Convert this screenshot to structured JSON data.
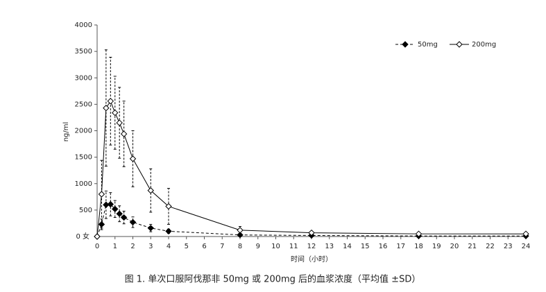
{
  "chart_data": {
    "type": "line",
    "title": "图 1. 单次口服阿伐那非 50mg 或 200mg 后的血浆浓度（平均值 ±SD）",
    "x_label": "时间（小时）",
    "y_label": "ng/ml",
    "x": [
      0,
      0.25,
      0.5,
      0.75,
      1,
      1.25,
      1.5,
      2,
      3,
      4,
      8,
      12,
      18,
      24
    ],
    "series": [
      {
        "name": "50mg",
        "color": "#000000",
        "line_style": "dashed",
        "marker": "filled-diamond",
        "values": [
          0,
          230,
          600,
          610,
          520,
          430,
          360,
          270,
          160,
          100,
          30,
          20,
          10,
          10
        ],
        "errors": [
          0,
          100,
          260,
          220,
          160,
          150,
          120,
          100,
          70,
          40,
          10,
          10,
          10,
          10
        ]
      },
      {
        "name": "200mg",
        "color": "#000000",
        "line_style": "solid",
        "marker": "open-diamond",
        "values": [
          0,
          800,
          2430,
          2560,
          2340,
          2150,
          1940,
          1470,
          870,
          570,
          120,
          70,
          50,
          50
        ],
        "errors": [
          0,
          640,
          1100,
          830,
          690,
          670,
          620,
          530,
          410,
          340,
          70,
          30,
          30,
          30
        ]
      }
    ],
    "xlim": [
      0,
      24
    ],
    "xticks": [
      0,
      1,
      2,
      3,
      4,
      5,
      6,
      7,
      8,
      9,
      10,
      11,
      12,
      13,
      14,
      15,
      16,
      17,
      18,
      19,
      20,
      21,
      22,
      23,
      24
    ],
    "ylim": [
      0,
      4000
    ],
    "yticks": [
      {
        "value": 0,
        "label": "0 女"
      },
      500,
      1000,
      1500,
      2000,
      2500,
      3000,
      3500,
      4000
    ],
    "grid": false,
    "legend": "top-right"
  }
}
